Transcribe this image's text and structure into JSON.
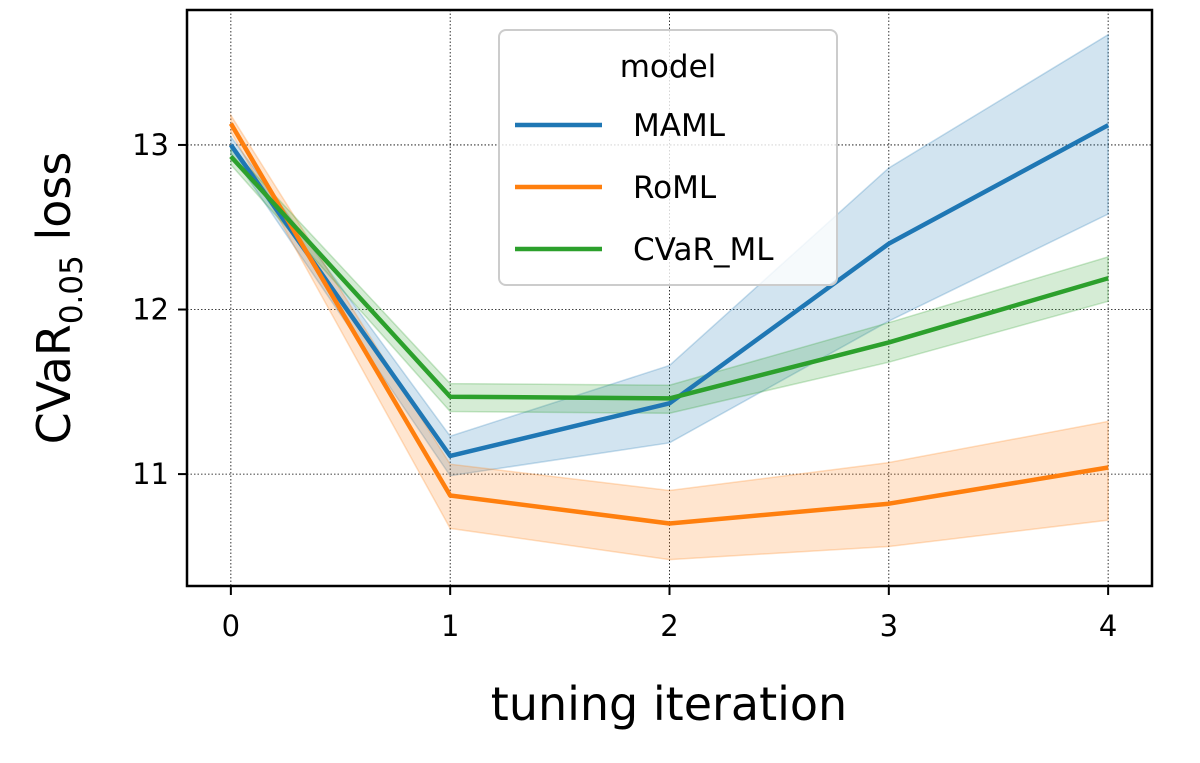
{
  "chart_data": {
    "type": "line",
    "title": "",
    "xlabel": "tuning iteration",
    "ylabel": {
      "main": "CVaR",
      "subscript": "0.05",
      "suffix": " loss"
    },
    "x": [
      0,
      1,
      2,
      3,
      4
    ],
    "xlim": [
      -0.2,
      4.2
    ],
    "ylim": [
      10.32,
      13.82
    ],
    "x_ticks": [
      "0",
      "1",
      "2",
      "3",
      "4"
    ],
    "y_ticks": [
      "11",
      "12",
      "13"
    ],
    "grid": true,
    "legend": {
      "title": "model",
      "position": "upper center"
    },
    "series": [
      {
        "name": "MAML",
        "color": "#1f77b4",
        "values": [
          13.0,
          11.11,
          11.43,
          12.4,
          13.12
        ],
        "ci_low": [
          12.95,
          10.99,
          11.19,
          11.93,
          12.58
        ],
        "ci_high": [
          13.05,
          11.23,
          11.66,
          12.86,
          13.67
        ]
      },
      {
        "name": "RoML",
        "color": "#ff7f0e",
        "values": [
          13.13,
          10.87,
          10.7,
          10.82,
          11.04
        ],
        "ci_low": [
          13.08,
          10.67,
          10.48,
          10.56,
          10.72
        ],
        "ci_high": [
          13.18,
          11.06,
          10.9,
          11.07,
          11.32
        ]
      },
      {
        "name": "CVaR_ML",
        "color": "#2ca02c",
        "values": [
          12.93,
          11.47,
          11.46,
          11.8,
          12.19
        ],
        "ci_low": [
          12.88,
          11.38,
          11.37,
          11.68,
          12.05
        ],
        "ci_high": [
          12.98,
          11.55,
          11.54,
          11.92,
          12.32
        ]
      }
    ]
  }
}
